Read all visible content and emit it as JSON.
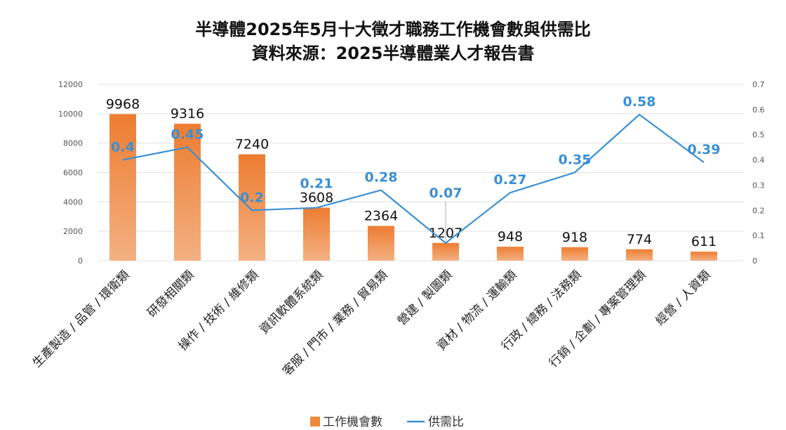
{
  "chart_data": {
    "type": "bar+line",
    "title": "半導體2025年5月十大徵才職務工作機會數與供需比",
    "subtitle": "資料來源：2025半導體業人才報告書",
    "categories": [
      "生產製造 / 品管 / 環衛類",
      "研發相關類",
      "操作 / 技術 / 維修類",
      "資訊軟體系統類",
      "客服 / 門市 / 業務 / 貿易類",
      "營建 / 製圖類",
      "資材 / 物流 / 運輸類",
      "行政 / 總務 / 法務類",
      "行銷 / 企劃 / 專案管理類",
      "經營 / 人資類"
    ],
    "series": [
      {
        "name": "工作機會數",
        "type": "bar",
        "axis": "left",
        "color": "#ee8a3a",
        "values": [
          9968,
          9316,
          7240,
          3608,
          2364,
          1207,
          948,
          918,
          774,
          611
        ]
      },
      {
        "name": "供需比",
        "type": "line",
        "axis": "right",
        "color": "#3b8fd3",
        "values": [
          0.4,
          0.45,
          0.2,
          0.21,
          0.28,
          0.07,
          0.27,
          0.35,
          0.58,
          0.39
        ]
      }
    ],
    "y_left": {
      "min": 0,
      "max": 12000,
      "ticks": [
        "0",
        "2000",
        "4000",
        "6000",
        "8000",
        "10000",
        "12000"
      ]
    },
    "y_right": {
      "min": 0,
      "max": 0.7,
      "ticks": [
        "0",
        "0.1",
        "0.2",
        "0.3",
        "0.4",
        "0.5",
        "0.6",
        "0.7"
      ]
    },
    "grid": true,
    "legend": "bottom-center"
  }
}
